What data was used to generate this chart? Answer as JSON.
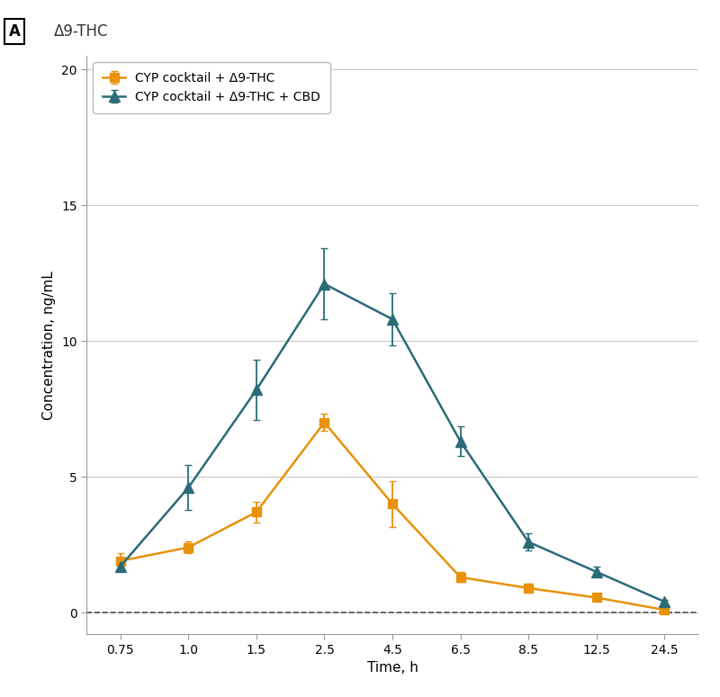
{
  "title_panel": "A",
  "title_compound": "Δ9-THC",
  "xlabel": "Time, h",
  "ylabel": "Concentration, ng/mL",
  "ylim": [
    -0.8,
    20.5
  ],
  "yticks": [
    0,
    5,
    10,
    15,
    20
  ],
  "xtick_labels": [
    "0.75",
    "1.0",
    "1.5",
    "2.5",
    "4.5",
    "6.5",
    "8.5",
    "12.5",
    "24.5"
  ],
  "series1_label": "CYP cocktail + Δ9-THC",
  "series1_color": "#E8920A",
  "series1_marker": "s",
  "series1_y": [
    1.9,
    2.4,
    3.7,
    7.0,
    4.0,
    1.3,
    0.9,
    0.55,
    0.1
  ],
  "series1_yerr_lo": [
    0.28,
    0.22,
    0.38,
    0.32,
    0.85,
    0.18,
    0.15,
    0.12,
    0.05
  ],
  "series1_yerr_hi": [
    0.28,
    0.22,
    0.38,
    0.32,
    0.85,
    0.18,
    0.15,
    0.12,
    0.05
  ],
  "series2_label": "CYP cocktail + Δ9-THC + CBD",
  "series2_color": "#2B6B78",
  "series2_marker": "^",
  "series2_y": [
    1.7,
    4.6,
    8.2,
    12.1,
    10.8,
    6.3,
    2.6,
    1.5,
    0.4
  ],
  "series2_yerr_lo": [
    0.18,
    0.82,
    1.1,
    1.3,
    0.95,
    0.55,
    0.32,
    0.18,
    0.08
  ],
  "series2_yerr_hi": [
    0.18,
    0.82,
    1.1,
    1.3,
    0.95,
    0.55,
    0.32,
    0.18,
    0.08
  ],
  "bg_color": "#FFFFFF",
  "grid_color": "#C8C8C8",
  "dashed_zero_color": "#555555",
  "markersize": 7,
  "linewidth": 1.8,
  "capsize": 3,
  "elinewidth": 1.3,
  "legend_fontsize": 10,
  "axis_fontsize": 11,
  "tick_fontsize": 10
}
